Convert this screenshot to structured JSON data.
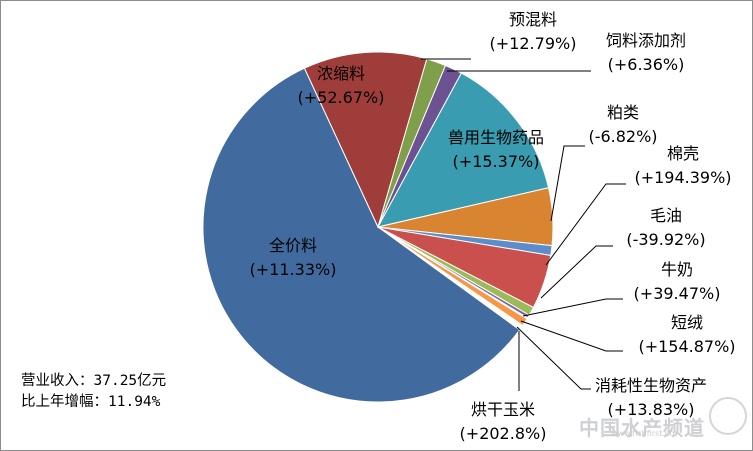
{
  "chart_data": {
    "type": "pie",
    "title": "",
    "slices": [
      {
        "label": "全价料",
        "change": "(+11.33%)",
        "share": 0.581,
        "color": "#416b9f"
      },
      {
        "label": "浓缩料",
        "change": "(+52.67%)",
        "share": 0.114,
        "color": "#9e3d3a"
      },
      {
        "label": "预混料",
        "change": "(+12.79%)",
        "share": 0.018,
        "color": "#7f9f4a"
      },
      {
        "label": "饲料添加剂",
        "change": "(+6.36%)",
        "share": 0.016,
        "color": "#6c5290"
      },
      {
        "label": "兽用生物药品",
        "change": "(+15.37%)",
        "share": 0.135,
        "color": "#3a9cb0"
      },
      {
        "label": "粕类",
        "change": "(-6.82%)",
        "share": 0.053,
        "color": "#d98431"
      },
      {
        "label": "棉壳",
        "change": "(+194.39%)",
        "share": 0.009,
        "color": "#5b8dcb"
      },
      {
        "label": "毛油",
        "change": "(-39.92%)",
        "share": 0.05,
        "color": "#c9504d"
      },
      {
        "label": "牛奶",
        "change": "(+39.47%)",
        "share": 0.008,
        "color": "#9bbb59"
      },
      {
        "label": "短绒",
        "change": "(+154.87%)",
        "share": 0.003,
        "color": "#8064a2"
      },
      {
        "label": "消耗性生物资产",
        "change": "(+13.83%)",
        "share": 0.001,
        "color": "#4bacc6"
      },
      {
        "label": "烘干玉米",
        "change": "(+202.8%)",
        "share": 0.007,
        "color": "#f79646"
      }
    ]
  },
  "summary": {
    "revenue": "营业收入：37.25亿元",
    "growth": "比上年增幅：11.94%"
  },
  "watermark": {
    "text": "中国水产频道",
    "url": "www.fishfirst.cn"
  }
}
